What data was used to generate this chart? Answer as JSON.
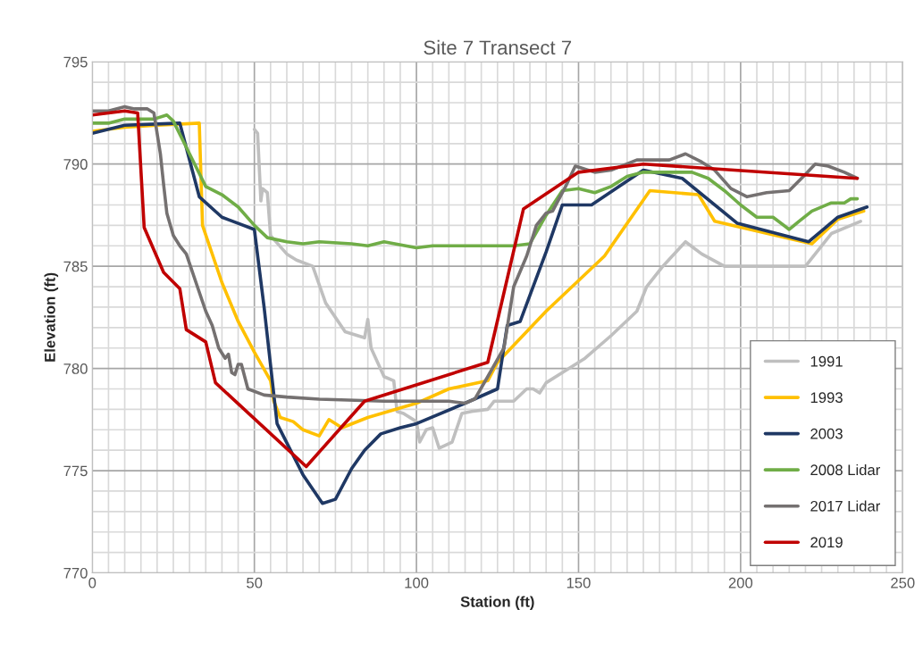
{
  "chart_data": {
    "type": "line",
    "title": "Site 7 Transect 7",
    "xlabel": "Station (ft)",
    "ylabel": "Elevation (ft)",
    "xlim": [
      0,
      250
    ],
    "xticks": [
      0,
      50,
      100,
      150,
      200,
      250
    ],
    "ylim": [
      770,
      795
    ],
    "yticks": [
      770,
      775,
      780,
      785,
      790,
      795
    ],
    "grid": true,
    "legend": "bottom right",
    "marker": "none",
    "line_style": "solid",
    "series": [
      {
        "name": "1991",
        "color": "#bfbfbf",
        "x": [
          50,
          51,
          52,
          52.5,
          54,
          55,
          60,
          63,
          68,
          72,
          78,
          84,
          85,
          86,
          90,
          93,
          94,
          96,
          100,
          101,
          103,
          105,
          107,
          111,
          114,
          117,
          122,
          124,
          130,
          134,
          136,
          138,
          140,
          145,
          152,
          160,
          168,
          171,
          176,
          183,
          188,
          195,
          200,
          220,
          228,
          237
        ],
        "values": [
          791.7,
          791.5,
          788.2,
          788.8,
          788.6,
          786.5,
          785.6,
          785.3,
          785.0,
          783.2,
          781.8,
          781.5,
          782.4,
          781.0,
          779.6,
          779.4,
          777.9,
          777.8,
          777.4,
          776.4,
          777.0,
          777.1,
          776.1,
          776.4,
          777.8,
          777.9,
          778.0,
          778.4,
          778.4,
          779.0,
          779.0,
          778.8,
          779.3,
          779.8,
          780.5,
          781.6,
          782.8,
          784.0,
          785.0,
          786.2,
          785.6,
          785.0,
          785.0,
          785.0,
          786.6,
          787.2
        ]
      },
      {
        "name": "1993",
        "color": "#ffc000",
        "x": [
          0,
          10,
          20,
          33,
          34,
          40,
          45,
          50,
          55,
          56,
          58,
          62,
          65,
          70,
          73,
          77,
          85,
          100,
          110,
          122,
          125,
          140,
          158,
          172,
          187,
          192,
          222,
          230,
          238
        ],
        "values": [
          791.6,
          791.8,
          791.9,
          792.0,
          787.0,
          784.2,
          782.3,
          780.8,
          779.4,
          778.4,
          777.6,
          777.4,
          777.0,
          776.7,
          777.5,
          777.1,
          777.6,
          778.3,
          779.0,
          779.4,
          780.3,
          782.8,
          785.5,
          788.7,
          788.5,
          787.2,
          786.1,
          787.3,
          787.7
        ]
      },
      {
        "name": "2003",
        "color": "#1f3864",
        "x": [
          0,
          10,
          27,
          33,
          40,
          50,
          53,
          57,
          65,
          71,
          75,
          80,
          84,
          89,
          95,
          100,
          115,
          125,
          128,
          132,
          140,
          145,
          154,
          170,
          182,
          199,
          221,
          230,
          239
        ],
        "values": [
          791.5,
          791.9,
          792.0,
          788.4,
          787.4,
          786.8,
          783.0,
          777.3,
          774.8,
          773.4,
          773.6,
          775.1,
          776.0,
          776.8,
          777.1,
          777.3,
          778.3,
          779.0,
          782.1,
          782.3,
          785.7,
          788.0,
          788.0,
          789.7,
          789.3,
          787.1,
          786.2,
          787.4,
          787.9
        ]
      },
      {
        "name": "2008 Lidar",
        "color": "#70ad47",
        "x": [
          0,
          5,
          10,
          19,
          23,
          25,
          30,
          35,
          40,
          45,
          50,
          54,
          60,
          65,
          70,
          80,
          85,
          90,
          100,
          105,
          115,
          120,
          130,
          135,
          140,
          145,
          150,
          155,
          160,
          165,
          170,
          175,
          180,
          185,
          190,
          195,
          200,
          205,
          210,
          215,
          218,
          222,
          228,
          232,
          234,
          236
        ],
        "values": [
          792.0,
          792.0,
          792.2,
          792.2,
          792.4,
          792.1,
          790.5,
          788.9,
          788.5,
          787.9,
          787.0,
          786.4,
          786.2,
          786.1,
          786.2,
          786.1,
          786.0,
          786.2,
          785.9,
          786.0,
          786.0,
          786.0,
          786.0,
          786.1,
          787.5,
          788.7,
          788.8,
          788.6,
          788.9,
          789.4,
          789.6,
          789.6,
          789.6,
          789.6,
          789.3,
          788.7,
          788.0,
          787.4,
          787.4,
          786.8,
          787.2,
          787.7,
          788.1,
          788.1,
          788.3,
          788.3
        ]
      },
      {
        "name": "2017 Lidar",
        "color": "#757171",
        "x": [
          0,
          5,
          10,
          13,
          17,
          19,
          21,
          22,
          23,
          25,
          27,
          29,
          32,
          35,
          37,
          39,
          41,
          42,
          43,
          44,
          45,
          46,
          48,
          53,
          60,
          70,
          90,
          110,
          115,
          118,
          122,
          127,
          130,
          134,
          137,
          140,
          142,
          146,
          149,
          151,
          155,
          160,
          168,
          172,
          178,
          183,
          188,
          192,
          197,
          202,
          208,
          215,
          220,
          223,
          227,
          232,
          236
        ],
        "values": [
          792.6,
          792.6,
          792.8,
          792.7,
          792.7,
          792.5,
          790.5,
          789.0,
          787.6,
          786.5,
          786.0,
          785.6,
          784.2,
          782.8,
          782.1,
          781.0,
          780.5,
          780.7,
          779.8,
          779.7,
          780.2,
          780.2,
          779.0,
          778.7,
          778.6,
          778.5,
          778.4,
          778.4,
          778.3,
          778.5,
          779.6,
          781.0,
          784.0,
          785.5,
          787.0,
          787.6,
          787.7,
          788.9,
          789.9,
          789.8,
          789.6,
          789.7,
          790.2,
          790.2,
          790.2,
          790.5,
          790.1,
          789.7,
          788.8,
          788.4,
          788.6,
          788.7,
          789.5,
          790.0,
          789.9,
          789.6,
          789.3
        ]
      },
      {
        "name": "2019",
        "color": "#c00000",
        "x": [
          0,
          10,
          14,
          16,
          22,
          27,
          29,
          35,
          38,
          66,
          84,
          122,
          133,
          150,
          170,
          236
        ],
        "values": [
          792.4,
          792.6,
          792.5,
          786.9,
          784.7,
          783.9,
          781.9,
          781.3,
          779.3,
          775.2,
          778.4,
          780.3,
          787.8,
          789.6,
          790.0,
          789.3
        ]
      }
    ]
  }
}
